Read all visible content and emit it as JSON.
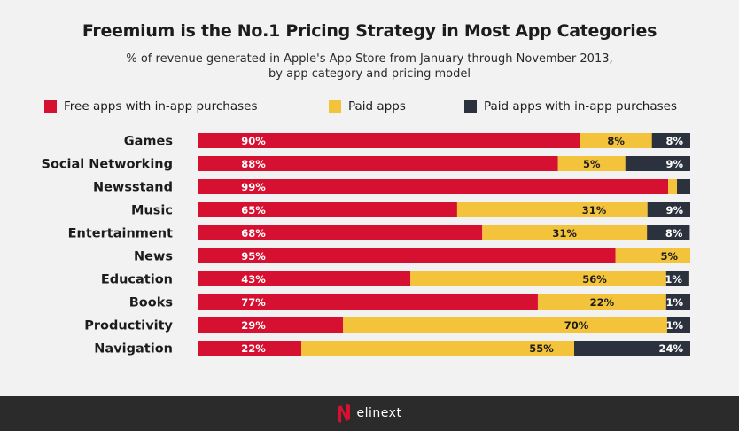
{
  "chart_data": {
    "type": "bar",
    "orientation": "horizontal",
    "stacked": true,
    "title": "Freemium is the No.1 Pricing Strategy in Most App Categories",
    "subtitle_lines": [
      "% of revenue generated in Apple's App Store from January through November 2013,",
      "by app category and pricing model"
    ],
    "xlabel": "",
    "ylabel": "",
    "legend_position": "top",
    "grid": false,
    "categories": [
      "Games",
      "Social Networking",
      "Newsstand",
      "Music",
      "Entertainment",
      "News",
      "Education",
      "Books",
      "Productivity",
      "Navigation"
    ],
    "series": [
      {
        "name": "Free apps with in-app purchases",
        "color": "#d61030",
        "label_color": "#ffffff",
        "values": [
          90,
          88,
          99,
          65,
          68,
          95,
          43,
          77,
          29,
          22
        ],
        "labels": [
          "90%",
          "88%",
          "99%",
          "65%",
          "68%",
          "95%",
          "43%",
          "77%",
          "29%",
          "22%"
        ],
        "displayed_share": [
          0.776,
          0.731,
          0.955,
          0.526,
          0.577,
          0.848,
          0.431,
          0.69,
          0.294,
          0.209
        ]
      },
      {
        "name": "Paid apps",
        "color": "#f3c33c",
        "label_color": "#1c1c1c",
        "values": [
          8,
          5,
          1,
          31,
          31,
          5,
          56,
          22,
          70,
          55
        ],
        "labels": [
          "8%",
          "5%",
          "",
          "31%",
          "31%",
          "5%",
          "56%",
          "22%",
          "70%",
          "55%"
        ],
        "displayed_share": [
          0.146,
          0.137,
          0.018,
          0.387,
          0.335,
          0.152,
          0.52,
          0.261,
          0.659,
          0.555
        ]
      },
      {
        "name": "Paid apps with in-app purchases",
        "color": "#2b313d",
        "label_color": "#ffffff",
        "values": [
          8,
          9,
          1,
          9,
          8,
          0,
          1,
          1,
          1,
          24
        ],
        "labels": [
          "8%",
          "9%",
          "",
          "9%",
          "8%",
          "",
          "1%",
          "1%",
          "1%",
          "24%"
        ],
        "displayed_share": [
          0.078,
          0.132,
          0.027,
          0.087,
          0.087,
          0.0,
          0.047,
          0.049,
          0.047,
          0.236
        ]
      }
    ]
  },
  "footer": {
    "brand": "elinext",
    "logo_color": "#d61030"
  }
}
